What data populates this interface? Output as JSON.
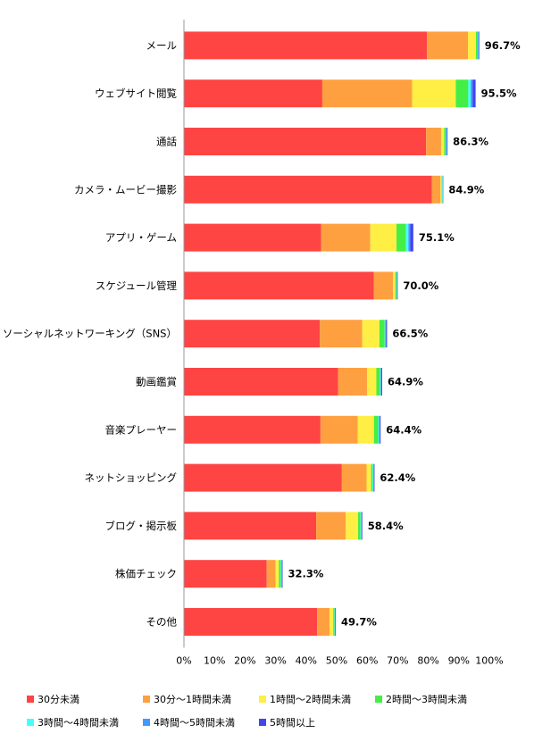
{
  "chart_data": {
    "type": "bar",
    "orientation": "horizontal",
    "stacked": true,
    "categories": [
      "メール",
      "ウェブサイト閲覧",
      "通話",
      "カメラ・ムービー撮影",
      "アプリ・ゲーム",
      "スケジュール管理",
      "ソーシャルネットワーキング（SNS）",
      "動画鑑賞",
      "音楽プレーヤー",
      "ネットショッピング",
      "ブログ・掲示板",
      "株価チェック",
      "その他"
    ],
    "totals": [
      "96.7%",
      "95.5%",
      "86.3%",
      "84.9%",
      "75.1%",
      "70.0%",
      "66.5%",
      "64.9%",
      "64.4%",
      "62.4%",
      "58.4%",
      "32.3%",
      "49.7%"
    ],
    "x_ticks": [
      "0%",
      "10%",
      "20%",
      "30%",
      "40%",
      "50%",
      "60%",
      "70%",
      "80%",
      "90%",
      "100%"
    ],
    "xlim": [
      0,
      100
    ],
    "legend_position": "bottom",
    "series": [
      {
        "name": "30分未満",
        "color": "#ff4444",
        "values": [
          79.6,
          45.3,
          79.3,
          81.2,
          44.9,
          62.2,
          44.5,
          50.5,
          44.7,
          51.7,
          43.3,
          27.1,
          43.6
        ]
      },
      {
        "name": "30分～1時間未満",
        "color": "#ffa040",
        "values": [
          13.4,
          29.4,
          4.9,
          2.8,
          16.1,
          6.3,
          13.9,
          9.5,
          12.2,
          8.1,
          9.7,
          2.9,
          4.1
        ]
      },
      {
        "name": "1時間～2時間未満",
        "color": "#ffee44",
        "values": [
          2.6,
          14.3,
          1.0,
          0.4,
          8.6,
          0.7,
          5.6,
          3.0,
          5.3,
          1.5,
          4.0,
          1.1,
          1.2
        ]
      },
      {
        "name": "2時間～3時間未満",
        "color": "#44ee44",
        "values": [
          0.6,
          4.1,
          0.6,
          0.2,
          3.1,
          0.4,
          1.7,
          1.2,
          1.4,
          0.5,
          0.8,
          0.6,
          0.4
        ]
      },
      {
        "name": "3時間～4時間未満",
        "color": "#44ffff",
        "values": [
          0.1,
          0.8,
          0.1,
          0.1,
          0.8,
          0.1,
          0.2,
          0.2,
          0.3,
          0.2,
          0.2,
          0.2,
          0.1
        ]
      },
      {
        "name": "4時間～5時間未満",
        "color": "#4499ff",
        "values": [
          0.2,
          0.6,
          0.2,
          0.1,
          0.6,
          0.1,
          0.3,
          0.2,
          0.2,
          0.2,
          0.2,
          0.2,
          0.1
        ]
      },
      {
        "name": "5時間以上",
        "color": "#4444ee",
        "values": [
          0.2,
          1.0,
          0.2,
          0.1,
          1.0,
          0.2,
          0.3,
          0.3,
          0.3,
          0.2,
          0.2,
          0.2,
          0.2
        ]
      }
    ]
  }
}
